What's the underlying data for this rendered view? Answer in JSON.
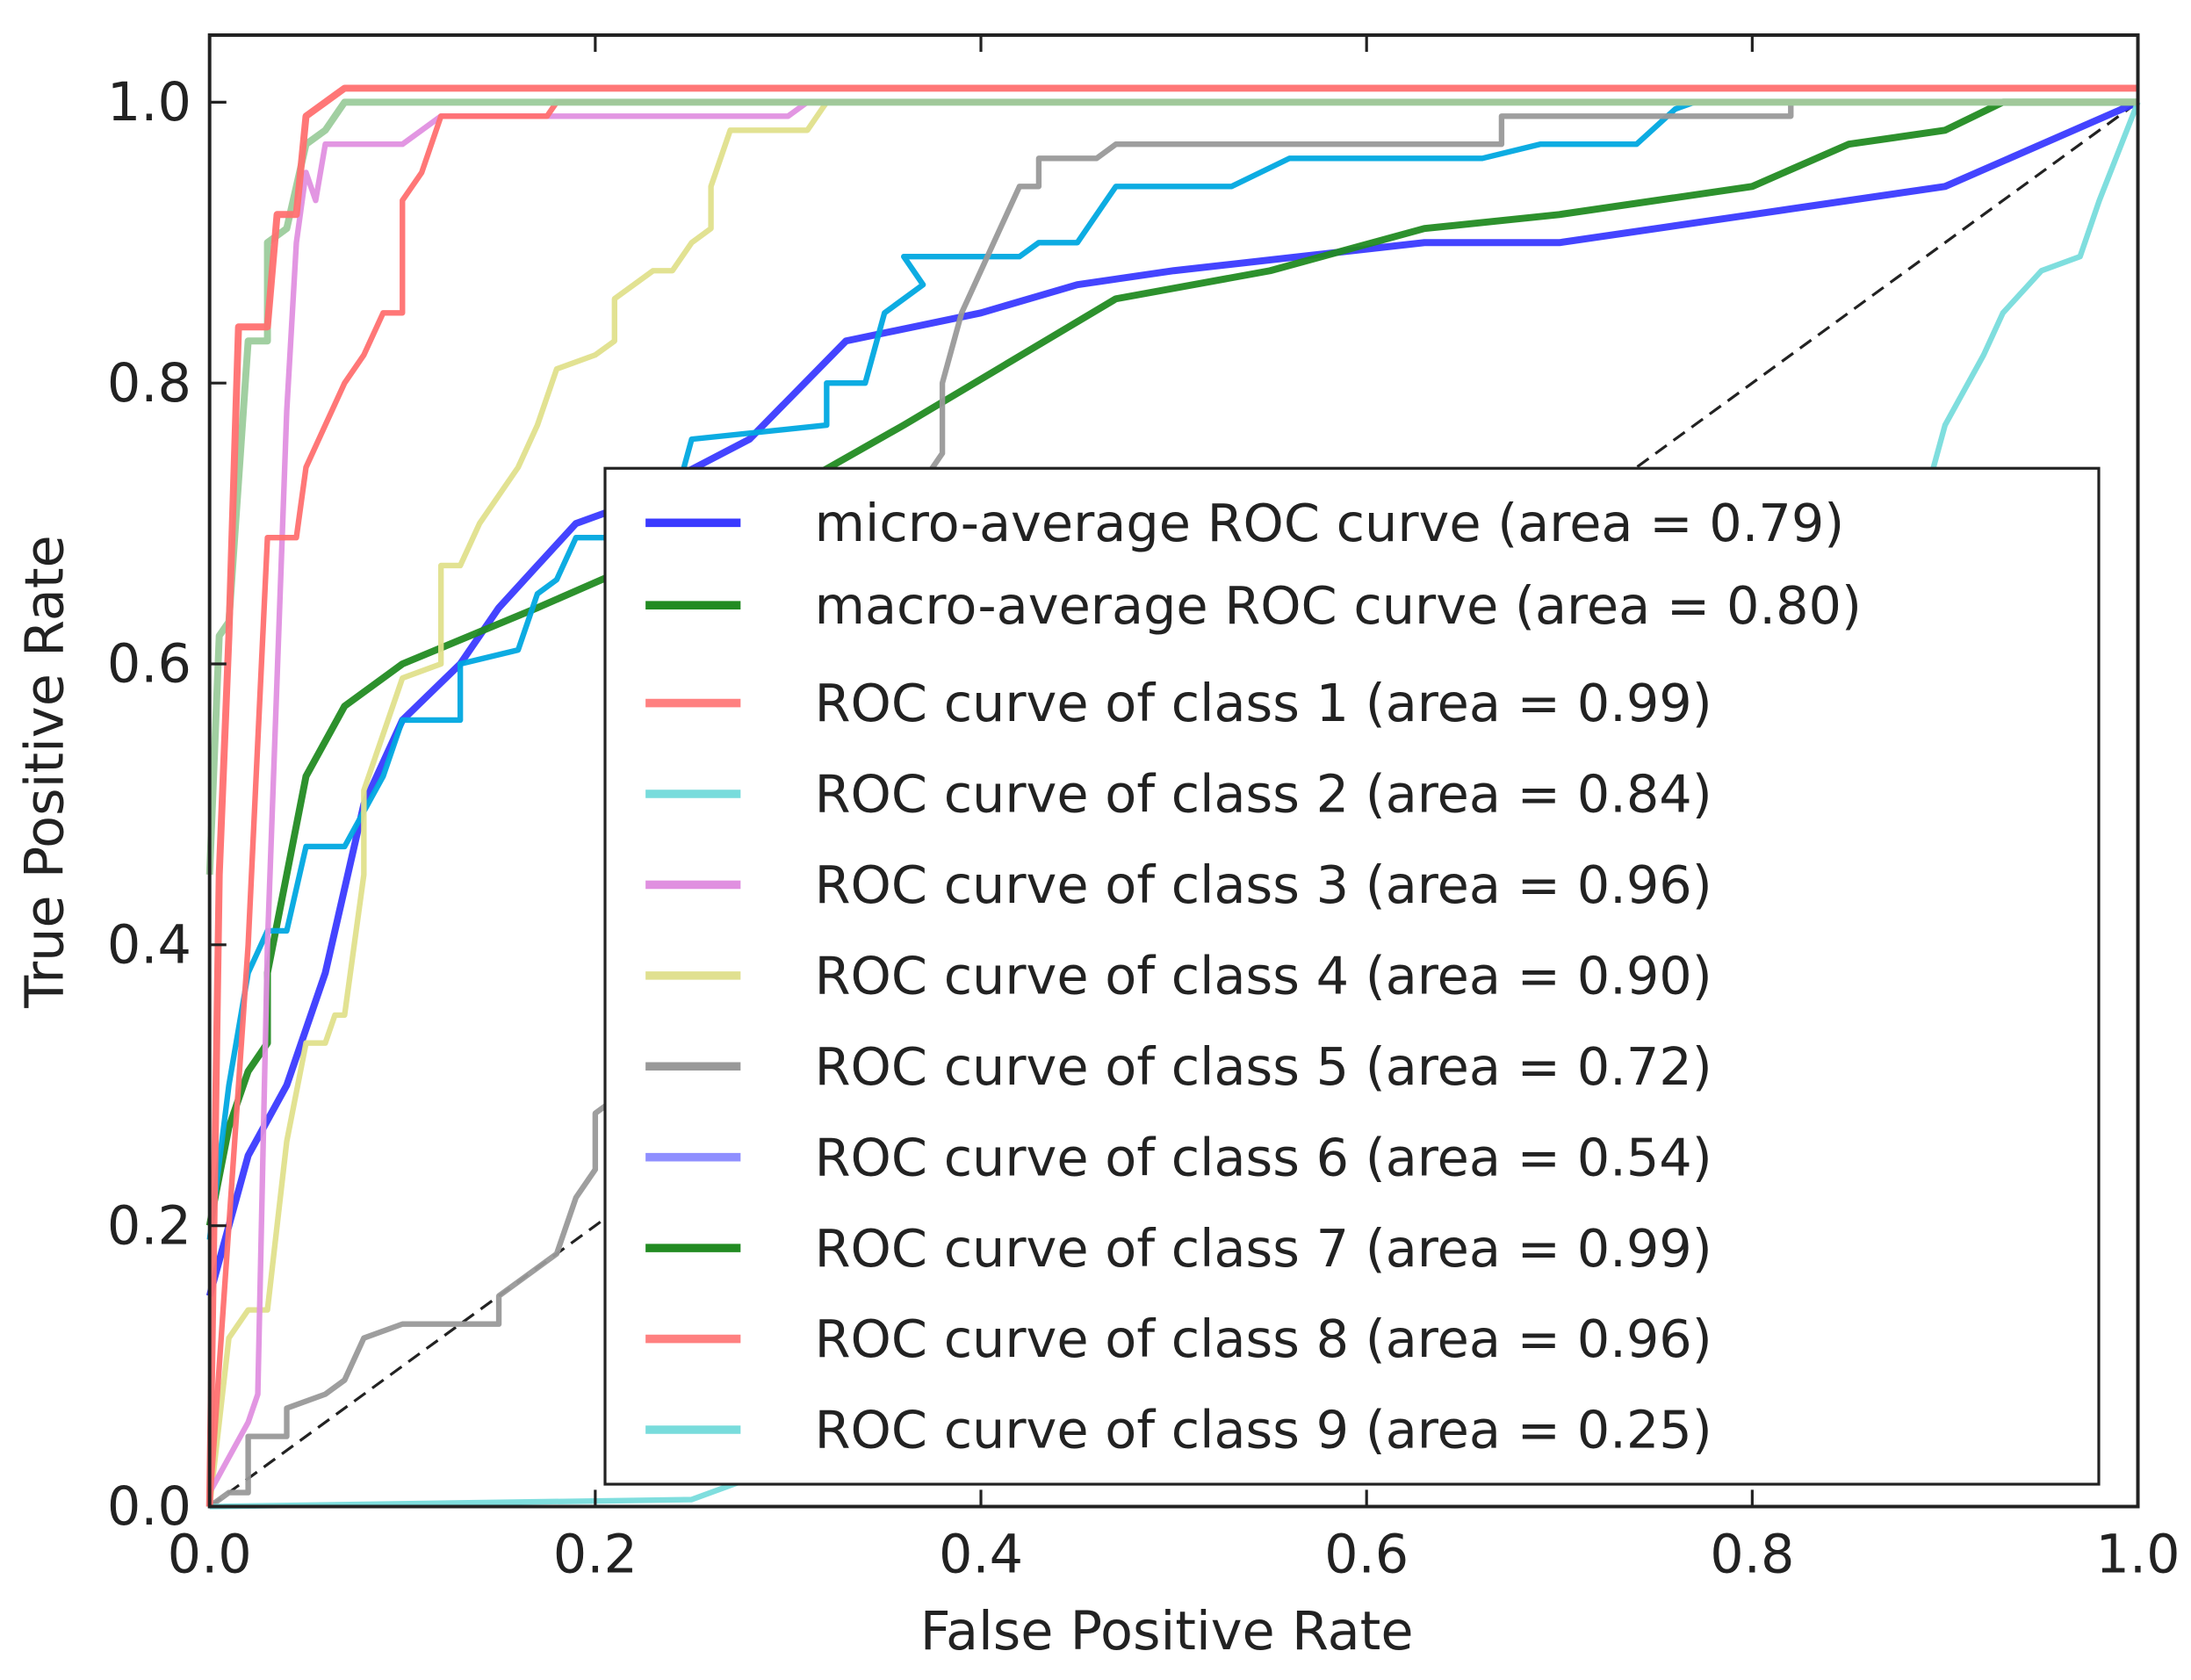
{
  "chart_data": {
    "type": "line",
    "title": "",
    "xlabel": "False Positive Rate",
    "ylabel": "True Positive Rate",
    "xlim": [
      0,
      1.0
    ],
    "ylim": [
      0,
      1.05
    ],
    "xticks": [
      "0.0",
      "0.2",
      "0.4",
      "0.6",
      "0.8",
      "1.0"
    ],
    "yticks": [
      "0.0",
      "0.2",
      "0.4",
      "0.6",
      "0.8",
      "1.0"
    ],
    "xtick_values": [
      0,
      0.2,
      0.4,
      0.6,
      0.8,
      1.0
    ],
    "ytick_values": [
      0,
      0.2,
      0.4,
      0.6,
      0.8,
      1.0
    ],
    "legend_placement": "lower-right",
    "diagonal": {
      "x": [
        0,
        1
      ],
      "y": [
        0,
        1
      ],
      "style": "dashed",
      "color": "#222222"
    },
    "legend": [
      {
        "label": "micro-average ROC curve (area = 0.79)",
        "color": "#3a3aff"
      },
      {
        "label": "macro-average ROC curve (area = 0.80)",
        "color": "#228b22"
      },
      {
        "label": "ROC curve of class 1 (area = 0.99)",
        "color": "#ff8080"
      },
      {
        "label": "ROC curve of class 2 (area = 0.84)",
        "color": "#78dcdc"
      },
      {
        "label": "ROC curve of class 3 (area = 0.96)",
        "color": "#e090e0"
      },
      {
        "label": "ROC curve of class 4 (area = 0.90)",
        "color": "#e0e090"
      },
      {
        "label": "ROC curve of class 5 (area = 0.72)",
        "color": "#999999"
      },
      {
        "label": "ROC curve of class 6 (area = 0.54)",
        "color": "#8f8fff"
      },
      {
        "label": "ROC curve of class 7 (area = 0.99)",
        "color": "#228b22"
      },
      {
        "label": "ROC curve of class 8 (area = 0.96)",
        "color": "#ff8080"
      },
      {
        "label": "ROC curve of class 9 (area = 0.25)",
        "color": "#78dcdc"
      }
    ],
    "series": [
      {
        "name": "micro-average",
        "color": "#3a3aff",
        "width": 5,
        "x": [
          0,
          0.02,
          0.04,
          0.06,
          0.08,
          0.1,
          0.13,
          0.15,
          0.17,
          0.19,
          0.21,
          0.28,
          0.33,
          0.4,
          0.45,
          0.5,
          0.63,
          0.7,
          0.8,
          0.9,
          1
        ],
        "y": [
          0.15,
          0.25,
          0.3,
          0.38,
          0.5,
          0.56,
          0.6,
          0.64,
          0.67,
          0.7,
          0.71,
          0.76,
          0.83,
          0.85,
          0.87,
          0.88,
          0.9,
          0.9,
          0.92,
          0.94,
          1
        ]
      },
      {
        "name": "macro-average",
        "color": "#228b22",
        "width": 5,
        "x": [
          0,
          0.01,
          0.02,
          0.03,
          0.03,
          0.04,
          0.05,
          0.07,
          0.1,
          0.17,
          0.27,
          0.36,
          0.47,
          0.55,
          0.63,
          0.7,
          0.8,
          0.85,
          0.9,
          0.93,
          1
        ],
        "y": [
          0.2,
          0.27,
          0.31,
          0.33,
          0.38,
          0.45,
          0.52,
          0.57,
          0.6,
          0.64,
          0.7,
          0.77,
          0.86,
          0.88,
          0.91,
          0.92,
          0.94,
          0.97,
          0.98,
          1.0,
          1
        ]
      },
      {
        "name": "class 2",
        "color": "#00a8e0",
        "width": 4,
        "x": [
          0,
          0.01,
          0.02,
          0.03,
          0.04,
          0.05,
          0.07,
          0.09,
          0.1,
          0.13,
          0.13,
          0.16,
          0.17,
          0.18,
          0.19,
          0.22,
          0.24,
          0.25,
          0.32,
          0.32,
          0.34,
          0.35,
          0.37,
          0.36,
          0.42,
          0.43,
          0.45,
          0.47,
          0.53,
          0.56,
          0.66,
          0.69,
          0.74,
          0.76,
          0.77,
          1
        ],
        "y": [
          0.19,
          0.3,
          0.38,
          0.41,
          0.41,
          0.47,
          0.47,
          0.52,
          0.56,
          0.56,
          0.6,
          0.61,
          0.65,
          0.66,
          0.69,
          0.69,
          0.71,
          0.76,
          0.77,
          0.8,
          0.8,
          0.85,
          0.87,
          0.89,
          0.89,
          0.9,
          0.9,
          0.94,
          0.94,
          0.96,
          0.96,
          0.97,
          0.97,
          0.995,
          1.0,
          1
        ]
      },
      {
        "name": "class 5",
        "color": "#999999",
        "width": 4,
        "x": [
          0,
          0.01,
          0.02,
          0.02,
          0.04,
          0.04,
          0.06,
          0.07,
          0.08,
          0.1,
          0.15,
          0.15,
          0.18,
          0.19,
          0.2,
          0.2,
          0.21,
          0.37,
          0.38,
          0.38,
          0.39,
          0.4,
          0.41,
          0.42,
          0.43,
          0.43,
          0.46,
          0.47,
          0.67,
          0.67,
          0.82,
          0.82,
          1
        ],
        "y": [
          0,
          0.01,
          0.01,
          0.05,
          0.05,
          0.07,
          0.08,
          0.09,
          0.12,
          0.13,
          0.13,
          0.15,
          0.18,
          0.22,
          0.24,
          0.28,
          0.29,
          0.73,
          0.75,
          0.8,
          0.85,
          0.88,
          0.91,
          0.94,
          0.94,
          0.96,
          0.96,
          0.97,
          0.97,
          0.99,
          0.99,
          1.0,
          1
        ]
      },
      {
        "name": "class 4",
        "color": "#e0e08c",
        "width": 4,
        "x": [
          0,
          0.01,
          0.02,
          0.03,
          0.035,
          0.04,
          0.05,
          0.06,
          0.065,
          0.07,
          0.08,
          0.08,
          0.09,
          0.1,
          0.12,
          0.12,
          0.13,
          0.14,
          0.15,
          0.16,
          0.17,
          0.18,
          0.2,
          0.21,
          0.21,
          0.23,
          0.24,
          0.25,
          0.26,
          0.26,
          0.27,
          0.31,
          0.32,
          1
        ],
        "y": [
          0,
          0.12,
          0.14,
          0.14,
          0.2,
          0.26,
          0.33,
          0.33,
          0.35,
          0.35,
          0.45,
          0.51,
          0.55,
          0.59,
          0.6,
          0.67,
          0.67,
          0.7,
          0.72,
          0.74,
          0.77,
          0.81,
          0.82,
          0.83,
          0.86,
          0.88,
          0.88,
          0.9,
          0.91,
          0.94,
          0.98,
          0.98,
          1.0,
          1
        ]
      },
      {
        "name": "class 9",
        "color": "#78dcdc",
        "width": 4,
        "x": [
          0,
          0.25,
          0.3,
          0.89,
          0.9,
          0.92,
          0.93,
          0.95,
          0.97,
          0.98,
          1
        ],
        "y": [
          0,
          0.005,
          0.03,
          0.72,
          0.77,
          0.82,
          0.85,
          0.88,
          0.89,
          0.93,
          1
        ]
      },
      {
        "name": "class 3",
        "color": "#e090e0",
        "width": 4,
        "x": [
          0,
          0.02,
          0.025,
          0.03,
          0.04,
          0.045,
          0.05,
          0.055,
          0.06,
          0.1,
          0.12,
          0.3,
          0.31,
          1
        ],
        "y": [
          0.01,
          0.06,
          0.08,
          0.4,
          0.78,
          0.9,
          0.95,
          0.93,
          0.97,
          0.97,
          0.99,
          0.99,
          1.0,
          1
        ]
      },
      {
        "name": "class 8",
        "color": "#ff7070",
        "width": 4,
        "x": [
          0,
          0.005,
          0.02,
          0.03,
          0.045,
          0.05,
          0.06,
          0.07,
          0.08,
          0.09,
          0.1,
          0.1,
          0.11,
          0.12,
          0.175,
          0.18,
          1
        ],
        "y": [
          0,
          0.1,
          0.4,
          0.69,
          0.69,
          0.74,
          0.77,
          0.8,
          0.82,
          0.85,
          0.85,
          0.93,
          0.95,
          0.99,
          0.99,
          1.0,
          1.0
        ]
      },
      {
        "name": "class 7",
        "color": "#9ccc9c",
        "width": 5,
        "x": [
          0,
          0.005,
          0.01,
          0.02,
          0.03,
          0.03,
          0.04,
          0.05,
          0.06,
          0.07,
          1
        ],
        "y": [
          0.45,
          0.62,
          0.63,
          0.83,
          0.83,
          0.9,
          0.91,
          0.97,
          0.98,
          1.0,
          1.0
        ]
      },
      {
        "name": "class 1",
        "color": "#ff7070",
        "width": 5,
        "x": [
          0,
          0.005,
          0.01,
          0.015,
          0.03,
          0.035,
          0.045,
          0.05,
          0.06,
          0.07,
          1
        ],
        "y": [
          0,
          0.45,
          0.62,
          0.84,
          0.84,
          0.92,
          0.92,
          0.99,
          1.0,
          1.01,
          1.01
        ]
      }
    ]
  }
}
